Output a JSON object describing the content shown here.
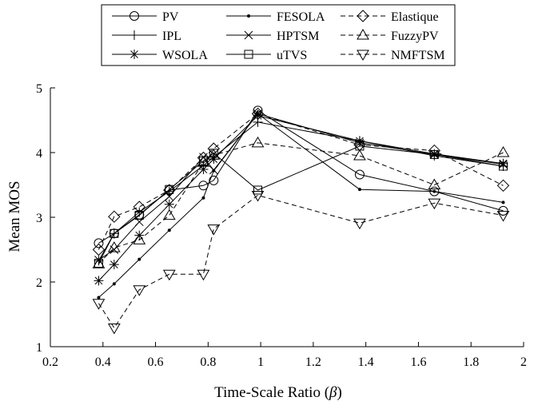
{
  "chart_data": {
    "type": "line",
    "xlabel": "Time-Scale Ratio (",
    "xlabel_symbol": "β",
    "xlabel_suffix": ")",
    "ylabel": "Mean MOS",
    "xlim": [
      0.2,
      2
    ],
    "ylim": [
      1,
      5
    ],
    "xticks": [
      "0.2",
      "0.4",
      "0.6",
      "0.8",
      "1",
      "1.2",
      "1.4",
      "1.6",
      "1.8",
      "2"
    ],
    "yticks": [
      "1",
      "2",
      "3",
      "4",
      "5"
    ],
    "grid": false,
    "legend_position": "top-center",
    "x": [
      0.3838,
      0.4427,
      0.5383,
      0.6524,
      0.7821,
      0.8212,
      0.9891,
      1.3765,
      1.6604,
      1.9224
    ],
    "series": [
      {
        "name": "PV",
        "marker": "circle",
        "dash": "solid",
        "values": [
          2.6,
          2.75,
          3.04,
          3.42,
          3.49,
          3.57,
          4.65,
          3.66,
          3.4,
          3.1
        ]
      },
      {
        "name": "IPL",
        "marker": "plus",
        "dash": "solid",
        "values": [
          2.33,
          2.75,
          3.08,
          3.4,
          3.8,
          3.93,
          4.47,
          4.18,
          3.95,
          3.79
        ]
      },
      {
        "name": "WSOLA",
        "marker": "asterisk",
        "dash": "solid",
        "values": [
          2.02,
          2.27,
          2.72,
          3.2,
          3.74,
          3.9,
          4.57,
          4.18,
          3.98,
          3.83
        ]
      },
      {
        "name": "FESOLA",
        "marker": "dot",
        "dash": "solid",
        "values": [
          1.76,
          1.97,
          2.35,
          2.8,
          3.3,
          3.72,
          4.6,
          3.43,
          3.4,
          3.23
        ]
      },
      {
        "name": "HPTSM",
        "marker": "x",
        "dash": "solid",
        "values": [
          2.34,
          2.5,
          2.93,
          3.32,
          3.93,
          3.73,
          4.6,
          4.15,
          3.97,
          3.82
        ]
      },
      {
        "name": "uTVS",
        "marker": "square",
        "dash": "solid",
        "values": [
          2.29,
          2.75,
          3.03,
          3.43,
          3.87,
          3.99,
          3.42,
          4.1,
          3.97,
          3.79
        ]
      },
      {
        "name": "Elastique",
        "marker": "diamond",
        "dash": "dashed",
        "values": [
          2.5,
          3.01,
          3.16,
          3.42,
          3.92,
          4.06,
          4.6,
          4.12,
          4.03,
          3.49
        ]
      },
      {
        "name": "FuzzyPV",
        "marker": "triangle-up",
        "dash": "dashed",
        "values": [
          2.28,
          2.53,
          2.65,
          3.03,
          3.85,
          3.96,
          4.15,
          3.95,
          3.5,
          4.0
        ]
      },
      {
        "name": "NMFTSM",
        "marker": "triangle-down",
        "dash": "dashed",
        "values": [
          1.67,
          1.29,
          1.88,
          2.12,
          2.12,
          2.82,
          3.34,
          2.91,
          3.22,
          3.03
        ]
      }
    ]
  }
}
